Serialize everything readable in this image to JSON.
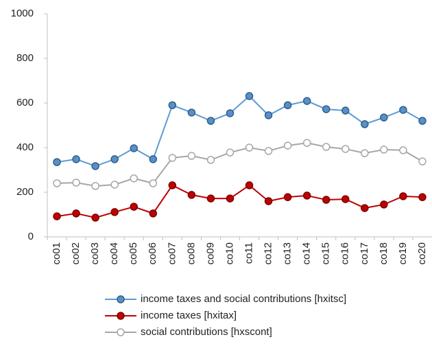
{
  "chart_data": {
    "type": "line",
    "categories": [
      "co01",
      "co02",
      "co03",
      "co04",
      "co05",
      "co06",
      "co07",
      "co08",
      "co09",
      "co10",
      "co11",
      "co12",
      "co13",
      "co14",
      "co15",
      "co16",
      "co17",
      "co18",
      "co19",
      "co20"
    ],
    "series": [
      {
        "name": "income taxes and social contributions [hxitsc]",
        "color": "#5b9bd5",
        "marker_fill": "#5b8fc8",
        "marker_stroke": "#2e5f8a",
        "values": [
          335,
          348,
          317,
          348,
          397,
          348,
          590,
          557,
          520,
          554,
          631,
          545,
          590,
          609,
          572,
          566,
          505,
          535,
          569,
          520
        ]
      },
      {
        "name": "income taxes [hxitax]",
        "color": "#c00000",
        "marker_fill": "#c00000",
        "marker_stroke": "#7a0000",
        "values": [
          92,
          105,
          86,
          111,
          135,
          105,
          231,
          188,
          172,
          172,
          231,
          160,
          178,
          185,
          166,
          169,
          129,
          145,
          182,
          178
        ]
      },
      {
        "name": "social contributions [hxscont]",
        "color": "#a6a6a6",
        "marker_fill": "#ffffff",
        "marker_stroke": "#a6a6a6",
        "values": [
          240,
          243,
          228,
          234,
          262,
          240,
          354,
          363,
          345,
          378,
          400,
          385,
          409,
          421,
          403,
          394,
          375,
          391,
          388,
          338
        ]
      }
    ],
    "ylim": [
      0,
      1000
    ],
    "yticks": [
      0,
      200,
      400,
      600,
      800,
      1000
    ],
    "grid": false,
    "legend": "bottom"
  }
}
